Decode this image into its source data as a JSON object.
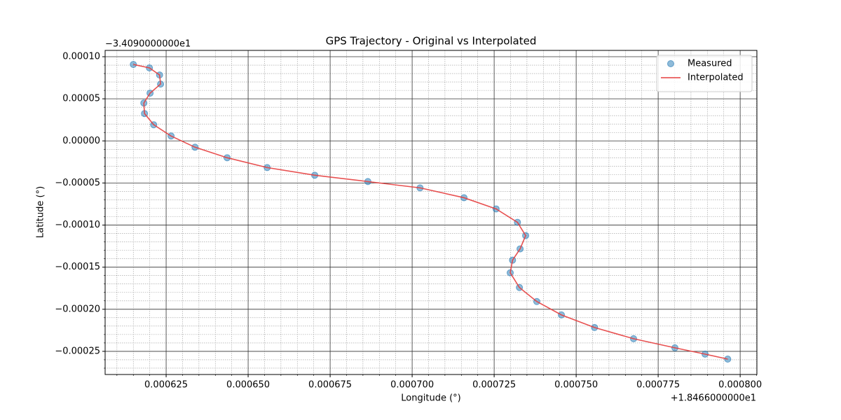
{
  "chart_data": {
    "type": "scatter",
    "title": "GPS Trajectory - Original vs Interpolated",
    "xlabel": "Longitude (°)",
    "ylabel": "Latitude (°)",
    "x_offset_label": "+1.8466000000e1",
    "y_offset_label": "−3.4090000000e1",
    "xlim": [
      0.0006064,
      0.0008051
    ],
    "ylim": [
      -0.0002775,
      0.0001075
    ],
    "xticks": [
      0.000625,
      {
        "value": 0.00065,
        "label": "0.000650"
      },
      0.000675,
      {
        "value": 0.0007,
        "label": "0.000700"
      },
      0.000725,
      {
        "value": 0.00075,
        "label": "0.000750"
      },
      0.000775,
      {
        "value": 0.0008,
        "label": "0.000800"
      }
    ],
    "yticks": [
      {
        "value": 0.0001,
        "label": "0.00010"
      },
      5e-05,
      {
        "value": 0,
        "label": "0.00000"
      },
      {
        "value": -5e-05,
        "label": "−0.00005"
      },
      {
        "value": -0.0001,
        "label": "−0.00010"
      },
      {
        "value": -0.00015,
        "label": "−0.00015"
      },
      {
        "value": -0.0002,
        "label": "−0.00020"
      },
      {
        "value": -0.00025,
        "label": "−0.00025"
      }
    ],
    "grid": true,
    "minor_grid": true,
    "legend": "upper right",
    "series": [
      {
        "name": "Measured",
        "type": "scatter",
        "color": "#1f77b4",
        "x": [
          0.000615,
          0.0006199,
          0.000623,
          0.0006233,
          0.0006201,
          0.0006182,
          0.0006184,
          0.0006212,
          0.0006265,
          0.0006338,
          0.0006436,
          0.0006558,
          0.0006703,
          0.0006865,
          0.0007024,
          0.0007158,
          0.0007256,
          0.0007321,
          0.0007346,
          0.0007329,
          0.0007306,
          0.0007299,
          0.0007327,
          0.000738,
          0.0007455,
          0.0007556,
          0.0007675,
          0.0007801,
          0.0007893,
          0.0007962
        ],
        "values": [
          9.08e-05,
          8.67e-05,
          7.83e-05,
          6.75e-05,
          5.67e-05,
          4.5e-05,
          3.25e-05,
          1.92e-05,
          5.8e-06,
          -7.5e-06,
          -2e-05,
          -3.17e-05,
          -4.08e-05,
          -4.83e-05,
          -5.58e-05,
          -6.75e-05,
          -8.08e-05,
          -9.67e-05,
          -0.0001125,
          -0.0001283,
          -0.0001417,
          -0.0001567,
          -0.0001742,
          -0.0001908,
          -0.0002067,
          -0.0002217,
          -0.000235,
          -0.0002458,
          -0.0002533,
          -0.0002592
        ]
      },
      {
        "name": "Interpolated",
        "type": "line",
        "color": "#e53e3e",
        "x": [
          0.000615,
          0.0006199,
          0.000623,
          0.0006233,
          0.0006201,
          0.0006182,
          0.0006184,
          0.0006212,
          0.0006265,
          0.0006338,
          0.0006436,
          0.0006558,
          0.0006703,
          0.0006865,
          0.0007024,
          0.0007158,
          0.0007256,
          0.0007321,
          0.0007346,
          0.0007329,
          0.0007306,
          0.0007299,
          0.0007327,
          0.000738,
          0.0007455,
          0.0007556,
          0.0007675,
          0.0007801,
          0.0007893,
          0.0007962
        ],
        "values": [
          9.08e-05,
          8.67e-05,
          7.83e-05,
          6.75e-05,
          5.67e-05,
          4.5e-05,
          3.25e-05,
          1.92e-05,
          5.8e-06,
          -7.5e-06,
          -2e-05,
          -3.17e-05,
          -4.08e-05,
          -4.83e-05,
          -5.58e-05,
          -6.75e-05,
          -8.08e-05,
          -9.67e-05,
          -0.0001125,
          -0.0001283,
          -0.0001417,
          -0.0001567,
          -0.0001742,
          -0.0001908,
          -0.0002067,
          -0.0002217,
          -0.000235,
          -0.0002458,
          -0.0002533,
          -0.0002592
        ]
      }
    ]
  }
}
